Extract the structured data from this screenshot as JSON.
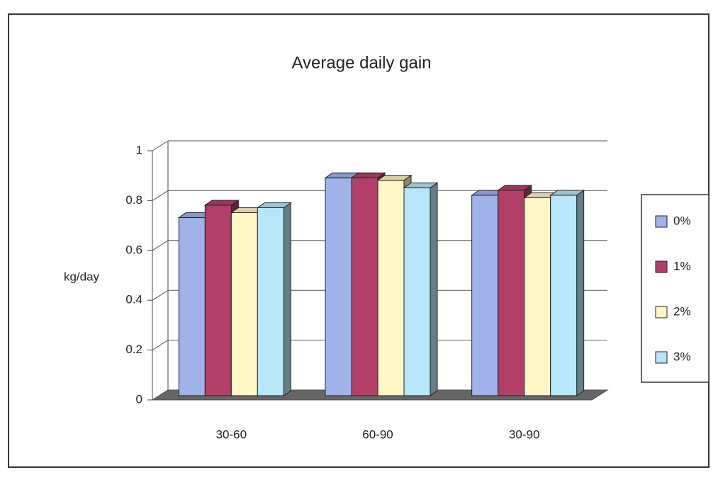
{
  "chart_data": {
    "type": "bar3d",
    "title": "Average daily gain",
    "y_label": "kg/day",
    "categories": [
      "30-60",
      "60-90",
      "30-90"
    ],
    "series": [
      {
        "name": "0%",
        "color": "#9fb2ea",
        "values": [
          0.72,
          0.88,
          0.81
        ]
      },
      {
        "name": "1%",
        "color": "#b23f68",
        "values": [
          0.77,
          0.88,
          0.83
        ]
      },
      {
        "name": "2%",
        "color": "#fff7c6",
        "values": [
          0.74,
          0.87,
          0.8
        ]
      },
      {
        "name": "3%",
        "color": "#b6e6f7",
        "values": [
          0.76,
          0.84,
          0.81
        ]
      }
    ],
    "ylim": [
      0,
      1
    ],
    "yticks": [
      0,
      0.2,
      0.4,
      0.6,
      0.8,
      1
    ],
    "grid": true,
    "legend": "right"
  }
}
